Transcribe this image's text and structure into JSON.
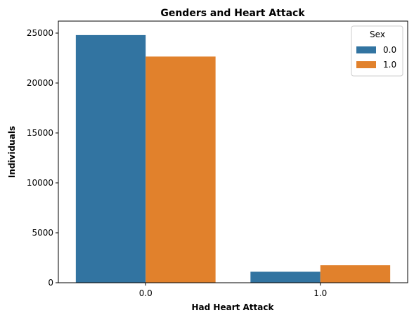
{
  "chart_data": {
    "type": "bar",
    "title": "Genders and Heart Attack",
    "xlabel": "Had Heart Attack",
    "ylabel": "Individuals",
    "categories": [
      "0.0",
      "1.0"
    ],
    "series": [
      {
        "name": "0.0",
        "color": "#3274a1",
        "values": [
          24800,
          1100
        ]
      },
      {
        "name": "1.0",
        "color": "#e1812c",
        "values": [
          22650,
          1750
        ]
      }
    ],
    "ylim": [
      0,
      26200
    ],
    "yticks": [
      0,
      5000,
      10000,
      15000,
      20000,
      25000
    ],
    "ytick_labels": [
      "0",
      "5000",
      "10000",
      "15000",
      "20000",
      "25000"
    ],
    "grid": false,
    "legend": {
      "title": "Sex",
      "position": "top-right"
    }
  }
}
